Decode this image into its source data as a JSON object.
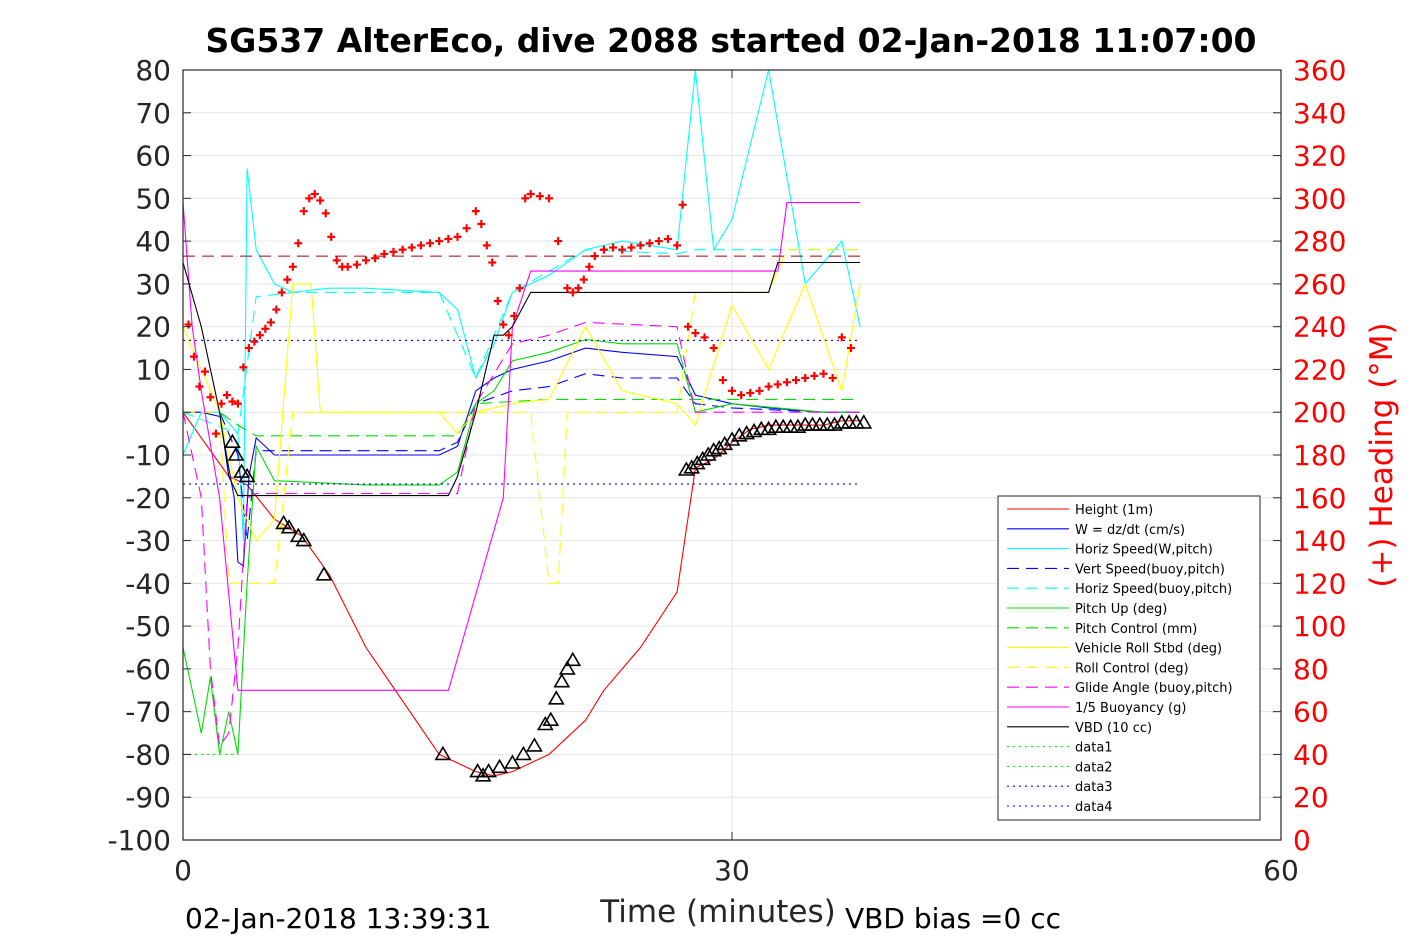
{
  "chart_data": {
    "type": "line",
    "title": "SG537 AlterEco, dive 2088 started 02-Jan-2018 11:07:00",
    "xlabel": "Time (minutes)",
    "ylabel_right": "(+) Heading (°M)",
    "xlim": [
      0,
      60
    ],
    "ylim": [
      -100,
      80
    ],
    "ylim_right": [
      0,
      360
    ],
    "x_ticks": [
      "0",
      "30",
      "60"
    ],
    "y_ticks": [
      "80",
      "70",
      "60",
      "50",
      "40",
      "30",
      "20",
      "10",
      "0",
      "-10",
      "-20",
      "-30",
      "-40",
      "-50",
      "-60",
      "-70",
      "-80",
      "-90",
      "-100"
    ],
    "y_right_ticks": [
      "360",
      "340",
      "320",
      "300",
      "280",
      "260",
      "240",
      "220",
      "200",
      "180",
      "160",
      "140",
      "120",
      "100",
      "80",
      "60",
      "40",
      "20",
      "0"
    ],
    "grid": true,
    "legend_position": "lower-right",
    "footer_left": "02-Jan-2018 13:39:31",
    "footer_right": "VBD bias =0 cc",
    "reference_lines": [
      {
        "name": "data1",
        "y": -80
      },
      {
        "name": "data2",
        "y": -80
      },
      {
        "name": "data3",
        "y": 16.8
      },
      {
        "name": "data4",
        "y": -16.8
      }
    ],
    "series": [
      {
        "name": "Height (1m)",
        "color": "#ff0000",
        "style": "solid",
        "x": [
          0,
          2.5,
          3.5,
          5,
          6.5,
          8,
          10,
          14,
          16,
          17,
          18,
          19,
          20,
          21,
          22,
          23,
          25,
          27,
          28,
          29,
          30,
          31,
          32,
          33,
          34,
          35,
          36,
          37
        ],
        "y": [
          0,
          -15,
          -17,
          -25,
          -29,
          -38,
          -55,
          -80,
          -84,
          -85,
          -84,
          -82,
          -80,
          -76,
          -72,
          -65,
          -55,
          -42,
          -13,
          -11,
          -7,
          -4,
          -3,
          -3,
          -3,
          -3,
          -2,
          -2
        ]
      },
      {
        "name": "W = dz/dt (cm/s)",
        "color": "#0000ff",
        "style": "solid",
        "x": [
          0,
          1,
          2,
          2.8,
          3,
          3.3,
          3.6,
          4,
          5,
          10,
          14,
          15,
          16,
          17,
          18,
          20,
          22,
          24,
          27,
          28,
          30,
          32,
          35,
          37
        ],
        "y": [
          0,
          0,
          -1,
          -20,
          -35,
          -36,
          -15,
          -6,
          -10,
          -10,
          -10,
          -8,
          5,
          8,
          10,
          12,
          15,
          14,
          13,
          4,
          2,
          1,
          0,
          0
        ]
      },
      {
        "name": "Horiz Speed(W,pitch)",
        "color": "#00ffff",
        "style": "solid",
        "x": [
          0,
          1,
          2,
          3,
          3.3,
          3.5,
          4,
          5,
          6,
          8,
          10,
          14,
          15,
          16,
          17,
          18,
          20,
          22,
          24,
          27,
          28,
          29,
          30,
          32,
          34,
          36,
          37
        ],
        "y": [
          -10,
          0,
          0,
          -5,
          -30,
          57,
          38,
          30,
          28,
          29,
          29,
          28,
          24,
          8,
          16,
          28,
          32,
          38,
          40,
          38,
          80,
          38,
          45,
          80,
          30,
          40,
          20
        ]
      },
      {
        "name": "Vert Speed(buoy,pitch)",
        "color": "#0000ff",
        "style": "dashed",
        "x": [
          0,
          2,
          3,
          3.5,
          4,
          10,
          14,
          15,
          16,
          18,
          20,
          22,
          24,
          27,
          28,
          30,
          35,
          37
        ],
        "y": [
          0,
          0,
          -10,
          -30,
          -9,
          -9,
          -9,
          -7,
          2,
          5,
          6,
          9,
          8,
          8,
          2,
          1,
          0,
          0
        ]
      },
      {
        "name": "Horiz Speed(buoy,pitch)",
        "color": "#00ffff",
        "style": "dashed",
        "x": [
          0,
          3,
          4,
          6,
          10,
          14,
          16,
          18,
          20,
          22,
          27,
          28,
          32,
          37
        ],
        "y": [
          0,
          -5,
          27,
          28,
          28,
          28,
          8,
          28,
          33,
          38,
          37,
          38,
          38,
          38
        ]
      },
      {
        "name": "Pitch Up (deg)",
        "color": "#00dd00",
        "style": "solid",
        "x": [
          0,
          0.5,
          1,
          1.5,
          2,
          2.5,
          3,
          3.5,
          4,
          5,
          10,
          14,
          15,
          16,
          17,
          18,
          20,
          22,
          24,
          27,
          28,
          30,
          35,
          37
        ],
        "y": [
          -55,
          -65,
          -75,
          -62,
          -80,
          -70,
          -80,
          -40,
          -8,
          -16,
          -17,
          -17,
          -14,
          2,
          5,
          12,
          14,
          17,
          16,
          16,
          0,
          2,
          0,
          0
        ]
      },
      {
        "name": "Pitch Control (mm)",
        "color": "#00dd00",
        "style": "dashed",
        "x": [
          0,
          2,
          3,
          4,
          14,
          15,
          16,
          20,
          27,
          28,
          37
        ],
        "y": [
          0,
          0,
          -3,
          -5.5,
          -5.5,
          -5.5,
          2,
          3,
          3,
          3,
          3
        ]
      },
      {
        "name": "Vehicle Roll Stbd (deg)",
        "color": "#ffff00",
        "style": "solid",
        "x": [
          0,
          1,
          2,
          3,
          4,
          5,
          6,
          7,
          7.5,
          10,
          14,
          15,
          16,
          18,
          20,
          22,
          24,
          27,
          28,
          30,
          32,
          34,
          36,
          37
        ],
        "y": [
          20,
          10,
          0,
          -20,
          -30,
          -25,
          30,
          30,
          0,
          0,
          0,
          -5,
          0,
          2,
          3,
          20,
          5,
          2,
          -3,
          25,
          10,
          30,
          5,
          30
        ]
      },
      {
        "name": "Roll Control (deg)",
        "color": "#ffff00",
        "style": "dashed",
        "x": [
          0,
          2,
          2.5,
          3,
          4,
          5,
          6,
          7,
          8,
          14,
          15,
          16,
          19,
          20,
          20.5,
          21,
          22,
          27,
          28,
          32,
          33,
          37
        ],
        "y": [
          0,
          0,
          -40,
          -40,
          -40,
          -40,
          0,
          0,
          0,
          0,
          0,
          0,
          0,
          -40,
          -40,
          0,
          0,
          0,
          28,
          28,
          38,
          38
        ]
      },
      {
        "name": "Glide Angle (buoy,pitch)",
        "color": "#ff00ff",
        "style": "dashed",
        "x": [
          0,
          1,
          1.5,
          2,
          2.5,
          3,
          3.5,
          4,
          5,
          10,
          14,
          15,
          16,
          18,
          20,
          22,
          27,
          28,
          37
        ],
        "y": [
          0,
          -20,
          -60,
          -78,
          -75,
          -55,
          -20,
          -19,
          -19,
          -19,
          -19,
          -19,
          2,
          16,
          18,
          21,
          20,
          0,
          0
        ]
      },
      {
        "name": "1/5 Buoyancy (g)",
        "color": "#ff00ff",
        "style": "solid",
        "x": [
          0,
          0.5,
          1,
          2,
          3,
          4,
          10,
          14,
          14.5,
          17.5,
          18,
          19,
          20,
          27,
          31,
          32.5,
          33,
          37
        ],
        "y": [
          49,
          20,
          5,
          -20,
          -65,
          -65,
          -65,
          -65,
          -65,
          -20,
          20,
          33,
          33,
          33,
          33,
          33,
          49,
          49
        ]
      },
      {
        "name": "VBD (10 cc)",
        "color": "#000000",
        "style": "solid",
        "x": [
          0,
          1,
          2,
          2.5,
          3,
          10,
          14,
          14.5,
          15,
          16,
          17,
          17.5,
          18,
          19,
          19.5,
          20,
          27,
          30,
          32,
          32.5,
          33,
          37
        ],
        "y": [
          35,
          20,
          0,
          -15,
          -19.5,
          -19.5,
          -19.5,
          -19.5,
          -15,
          0,
          18,
          18,
          20,
          28,
          28,
          28,
          28,
          28,
          28,
          35,
          35,
          35
        ]
      },
      {
        "name": "data1",
        "color": "#00ff00",
        "style": "dotted",
        "x": [
          0,
          3
        ],
        "y": [
          -80,
          -80
        ]
      },
      {
        "name": "data2",
        "color": "#00ff00",
        "style": "dotted",
        "x": [
          0,
          3
        ],
        "y": [
          -80,
          -80
        ]
      },
      {
        "name": "data3",
        "color": "#0000ff",
        "style": "dotted",
        "x": [
          0,
          37
        ],
        "y": [
          16.8,
          16.8
        ]
      },
      {
        "name": "data4",
        "color": "#0000ff",
        "style": "dotted",
        "x": [
          0,
          37
        ],
        "y": [
          -16.8,
          -16.8
        ]
      }
    ],
    "heading_reference": {
      "color": "#aa0000",
      "style": "dashed",
      "value": 273
    },
    "heading_points": {
      "color": "#ff0000",
      "marker": "+",
      "x": [
        0.3,
        0.6,
        0.9,
        1.2,
        1.5,
        1.8,
        2.1,
        2.4,
        2.7,
        3,
        3.3,
        3.6,
        3.9,
        4.2,
        4.5,
        4.8,
        5.1,
        5.4,
        5.7,
        6,
        6.3,
        6.6,
        6.9,
        7.2,
        7.5,
        7.8,
        8.1,
        8.4,
        8.7,
        9,
        9.5,
        10,
        10.5,
        11,
        11.5,
        12,
        12.5,
        13,
        13.5,
        14,
        14.5,
        15,
        15.5,
        16,
        16.3,
        16.6,
        16.9,
        17.2,
        17.5,
        17.8,
        18.1,
        18.4,
        18.7,
        19,
        19.5,
        20,
        20.5,
        21,
        21.3,
        21.6,
        21.9,
        22.2,
        22.5,
        23,
        23.5,
        24,
        24.5,
        25,
        25.5,
        26,
        26.5,
        27,
        27.3,
        27.6,
        28,
        28.5,
        29,
        29.5,
        30,
        30.5,
        31,
        31.5,
        32,
        32.5,
        33,
        33.5,
        34,
        34.5,
        35,
        35.5,
        36,
        36.5
      ],
      "y": [
        241,
        226,
        212,
        219,
        207,
        190,
        204,
        208,
        205,
        204,
        221,
        230,
        233,
        236,
        239,
        242,
        248,
        256,
        262,
        268,
        279,
        294,
        300,
        302,
        299,
        293,
        282,
        271,
        268,
        268,
        269,
        271,
        272,
        274,
        275,
        276,
        277,
        278,
        279,
        280,
        281,
        282,
        286,
        294,
        288,
        278,
        270,
        252,
        241,
        236,
        245,
        258,
        300,
        302,
        301,
        300,
        280,
        258,
        256,
        258,
        262,
        268,
        273,
        276,
        277,
        276,
        277,
        278,
        279,
        280,
        281,
        278,
        297,
        240,
        237,
        235,
        230,
        215,
        210,
        208,
        209,
        210,
        212,
        213,
        214,
        215,
        216,
        217,
        218,
        216,
        235,
        230
      ]
    },
    "triangle_markers": {
      "color": "#000000",
      "x": [
        2.7,
        2.9,
        3.2,
        3.5,
        5.5,
        5.8,
        6.3,
        6.6,
        7.7,
        14.2,
        16.1,
        16.4,
        16.7,
        17.3,
        18,
        18.6,
        19.2,
        19.8,
        20.1,
        20.4,
        20.7,
        21,
        21.3,
        27.5,
        27.8,
        28.1,
        28.4,
        28.7,
        29,
        29.3,
        29.6,
        30,
        30.4,
        30.8,
        31.2,
        31.6,
        32,
        32.4,
        32.8,
        33.2,
        33.6,
        34,
        34.4,
        34.8,
        35.2,
        35.6,
        36,
        36.4,
        36.8,
        37.2
      ],
      "y": [
        -7,
        -10,
        -14,
        -15,
        -26,
        -27,
        -29,
        -30,
        -38,
        -80,
        -84,
        -85,
        -84,
        -83,
        -82,
        -80,
        -78,
        -73,
        -72,
        -67,
        -63,
        -60,
        -58,
        -13.5,
        -13,
        -12,
        -11,
        -10,
        -9,
        -8.5,
        -7.5,
        -6.5,
        -5.5,
        -5,
        -4.5,
        -4,
        -4,
        -3.5,
        -3.5,
        -3.5,
        -3.5,
        -3,
        -3,
        -3,
        -3,
        -3,
        -2.5,
        -2.5,
        -2.5,
        -2.5
      ]
    }
  }
}
